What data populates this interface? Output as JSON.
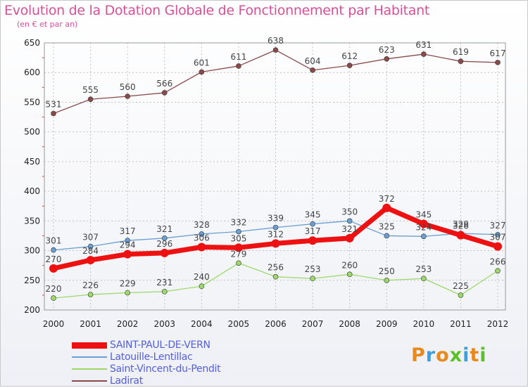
{
  "header": {
    "title": "Evolution de la Dotation Globale de Fonctionnement par Habitant",
    "subtitle": "(en € et par an)"
  },
  "logo": {
    "letters": [
      "P",
      "r",
      "o",
      "x",
      "i",
      "t",
      "i"
    ]
  },
  "colors": {
    "title": "#d8509a",
    "grid": "#c2c2c2",
    "axis_text": "#222222",
    "label_text": "#444444",
    "legend_text": "#5560d8",
    "logo": [
      "#e8891c",
      "#3aa0e0",
      "#e8891c",
      "#5bbf2a",
      "#3aa0e0",
      "#e8891c",
      "#5bbf2a"
    ]
  },
  "chart_data": {
    "type": "line",
    "title": "Evolution de la Dotation Globale de Fonctionnement par Habitant",
    "subtitle": "(en € et par an)",
    "xlabel": "",
    "ylabel": "",
    "x": [
      "2000",
      "2001",
      "2002",
      "2003",
      "2004",
      "2005",
      "2006",
      "2007",
      "2008",
      "2009",
      "2010",
      "2011",
      "2012"
    ],
    "ylim": [
      200,
      650
    ],
    "yticks": [
      200,
      250,
      300,
      350,
      400,
      450,
      500,
      550,
      600,
      650
    ],
    "grid": true,
    "legend_position": "bottom-left",
    "series": [
      {
        "name": "SAINT-PAUL-DE-VERN",
        "color": "#ee1111",
        "values": [
          270,
          284,
          294,
          296,
          306,
          305,
          312,
          317,
          321,
          372,
          345,
          326,
          307
        ],
        "labels": [
          "270",
          "284",
          "294",
          "296",
          "306",
          "305",
          "312",
          "317",
          "321",
          "372",
          "345",
          "326",
          "307"
        ]
      },
      {
        "name": "Latouille-Lentillac",
        "color": "#6a9fd4",
        "values": [
          301,
          307,
          317,
          321,
          328,
          332,
          339,
          345,
          350,
          325,
          324,
          329,
          327
        ],
        "labels": [
          "301",
          "307",
          "317",
          "321",
          "328",
          "332",
          "339",
          "345",
          "350",
          "325",
          "324",
          "329",
          "327"
        ]
      },
      {
        "name": "Saint-Vincent-du-Pendit",
        "color": "#9cd96a",
        "values": [
          220,
          226,
          229,
          231,
          240,
          279,
          256,
          253,
          260,
          250,
          253,
          225,
          266
        ],
        "labels": [
          "220",
          "226",
          "229",
          "231",
          "240",
          "279",
          "256",
          "253",
          "260",
          "250",
          "253",
          "225",
          "266"
        ]
      },
      {
        "name": "Ladirat",
        "color": "#8b4a4a",
        "values": [
          531,
          555,
          560,
          566,
          601,
          611,
          638,
          604,
          612,
          623,
          631,
          619,
          617
        ],
        "labels": [
          "531",
          "555",
          "560",
          "566",
          "601",
          "611",
          "638",
          "604",
          "612",
          "623",
          "631",
          "619",
          "617"
        ]
      }
    ]
  }
}
